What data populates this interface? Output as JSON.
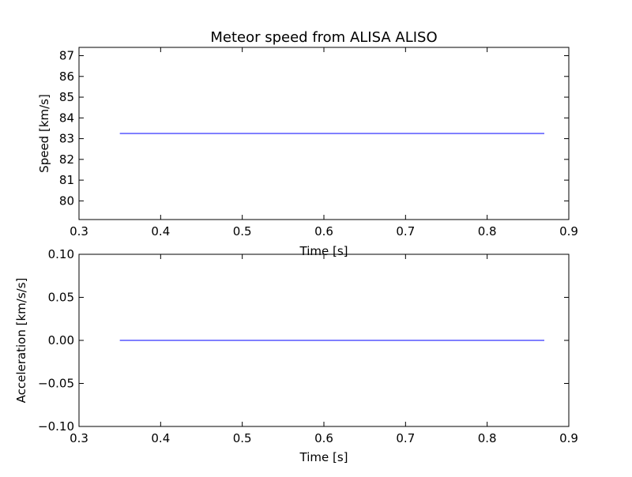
{
  "chart_data": [
    {
      "type": "line",
      "title": "Meteor speed from  ALISA ALISO",
      "xlabel": "Time [s]",
      "ylabel": "Speed [km/s]",
      "xlim": [
        0.3,
        0.9
      ],
      "ylim": [
        79.1,
        87.4
      ],
      "xticks": [
        "0.3",
        "0.4",
        "0.5",
        "0.6",
        "0.7",
        "0.8",
        "0.9"
      ],
      "yticks": [
        "80",
        "81",
        "82",
        "83",
        "84",
        "85",
        "86",
        "87"
      ],
      "grid": false,
      "series": [
        {
          "color": "#0000ff",
          "x": [
            0.35,
            0.87
          ],
          "y": [
            83.25,
            83.25
          ]
        }
      ]
    },
    {
      "type": "line",
      "title": "",
      "xlabel": "Time [s]",
      "ylabel": "Acceleration [km/s/s]",
      "xlim": [
        0.3,
        0.9
      ],
      "ylim": [
        -0.1,
        0.1
      ],
      "xticks": [
        "0.3",
        "0.4",
        "0.5",
        "0.6",
        "0.7",
        "0.8",
        "0.9"
      ],
      "yticks": [
        "−0.10",
        "−0.05",
        "0.00",
        "0.05",
        "0.10"
      ],
      "grid": false,
      "series": [
        {
          "color": "#0000ff",
          "x": [
            0.35,
            0.87
          ],
          "y": [
            0.0,
            0.0
          ]
        }
      ]
    }
  ]
}
